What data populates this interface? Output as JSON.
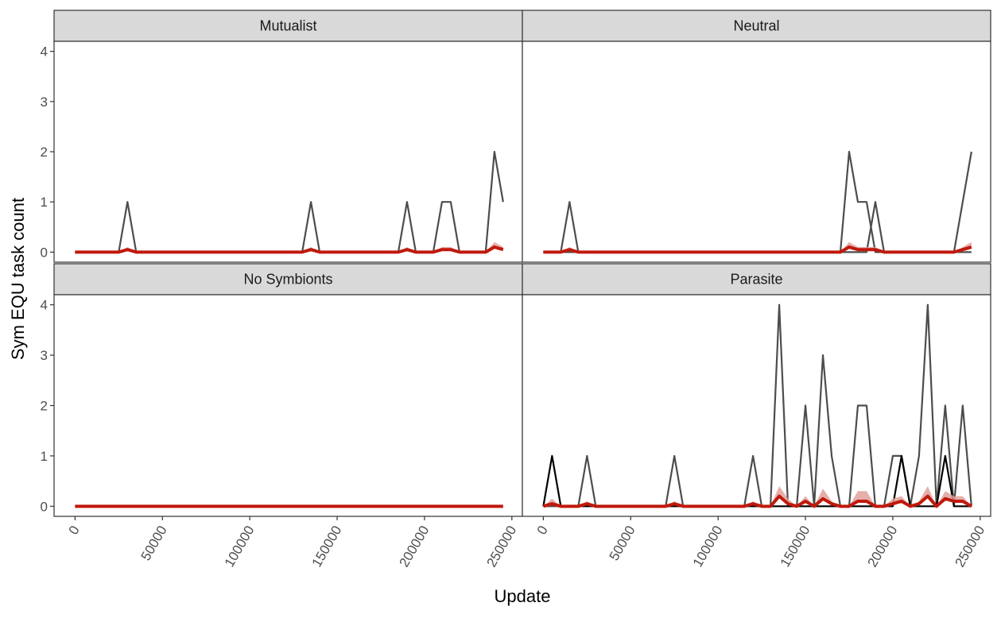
{
  "xlabel": "Update",
  "ylabel": "Sym EQU task count",
  "chart_data": [
    {
      "type": "line",
      "title": "Mutualist",
      "x": [
        0,
        5000,
        10000,
        15000,
        20000,
        25000,
        30000,
        35000,
        40000,
        45000,
        50000,
        55000,
        60000,
        65000,
        70000,
        75000,
        80000,
        85000,
        90000,
        95000,
        100000,
        105000,
        110000,
        115000,
        120000,
        125000,
        130000,
        135000,
        140000,
        145000,
        150000,
        155000,
        160000,
        165000,
        170000,
        175000,
        180000,
        185000,
        190000,
        195000,
        200000,
        205000,
        210000,
        215000,
        220000,
        225000,
        230000,
        235000,
        240000,
        245000
      ],
      "xlim": [
        -12000,
        256000
      ],
      "ylim": [
        -0.2,
        4.2
      ],
      "yticks": [
        0,
        1,
        2,
        3,
        4
      ],
      "series": [
        {
          "color": "#4d4d4d",
          "values": [
            0,
            0,
            0,
            0,
            0,
            0,
            1,
            0,
            0,
            0,
            0,
            0,
            0,
            0,
            0,
            0,
            0,
            0,
            0,
            0,
            0,
            0,
            0,
            0,
            0,
            0,
            0,
            1,
            0,
            0,
            0,
            0,
            0,
            0,
            0,
            0,
            0,
            0,
            1,
            0,
            0,
            0,
            1,
            1,
            0,
            0,
            0,
            0,
            2,
            1
          ]
        },
        {
          "color": "#c0190c",
          "ribbon_color": "#e2a19b",
          "values": [
            0,
            0,
            0,
            0,
            0,
            0,
            0.05,
            0,
            0,
            0,
            0,
            0,
            0,
            0,
            0,
            0,
            0,
            0,
            0,
            0,
            0,
            0,
            0,
            0,
            0,
            0,
            0,
            0.05,
            0,
            0,
            0,
            0,
            0,
            0,
            0,
            0,
            0,
            0,
            0.05,
            0,
            0,
            0,
            0.05,
            0.05,
            0,
            0,
            0,
            0,
            0.1,
            0.05
          ],
          "upper": [
            0,
            0,
            0,
            0,
            0,
            0,
            0.1,
            0,
            0,
            0,
            0,
            0,
            0,
            0,
            0,
            0,
            0,
            0,
            0,
            0,
            0,
            0,
            0,
            0,
            0,
            0,
            0,
            0.1,
            0,
            0,
            0,
            0,
            0,
            0,
            0,
            0,
            0,
            0,
            0.1,
            0,
            0,
            0,
            0.1,
            0.1,
            0,
            0,
            0,
            0,
            0.2,
            0.1
          ]
        }
      ]
    },
    {
      "type": "line",
      "title": "Neutral",
      "x": [
        0,
        5000,
        10000,
        15000,
        20000,
        25000,
        30000,
        35000,
        40000,
        45000,
        50000,
        55000,
        60000,
        65000,
        70000,
        75000,
        80000,
        85000,
        90000,
        95000,
        100000,
        105000,
        110000,
        115000,
        120000,
        125000,
        130000,
        135000,
        140000,
        145000,
        150000,
        155000,
        160000,
        165000,
        170000,
        175000,
        180000,
        185000,
        190000,
        195000,
        200000,
        205000,
        210000,
        215000,
        220000,
        225000,
        230000,
        235000,
        240000,
        245000
      ],
      "xlim": [
        -12000,
        256000
      ],
      "ylim": [
        -0.2,
        4.2
      ],
      "series": [
        {
          "color": "#4d4d4d",
          "values": [
            0,
            0,
            0,
            1,
            0,
            0,
            0,
            0,
            0,
            0,
            0,
            0,
            0,
            0,
            0,
            0,
            0,
            0,
            0,
            0,
            0,
            0,
            0,
            0,
            0,
            0,
            0,
            0,
            0,
            0,
            0,
            0,
            0,
            0,
            0,
            2,
            1,
            1,
            0,
            0,
            0,
            0,
            0,
            0,
            0,
            0,
            0,
            0,
            1,
            2
          ]
        },
        {
          "color": "#4d4d4d",
          "values": [
            0,
            0,
            0,
            0,
            0,
            0,
            0,
            0,
            0,
            0,
            0,
            0,
            0,
            0,
            0,
            0,
            0,
            0,
            0,
            0,
            0,
            0,
            0,
            0,
            0,
            0,
            0,
            0,
            0,
            0,
            0,
            0,
            0,
            0,
            0,
            0,
            0,
            0,
            1,
            0,
            0,
            0,
            0,
            0,
            0,
            0,
            0,
            0,
            0,
            0
          ]
        },
        {
          "color": "#c0190c",
          "ribbon_color": "#e2a19b",
          "values": [
            0,
            0,
            0,
            0.05,
            0,
            0,
            0,
            0,
            0,
            0,
            0,
            0,
            0,
            0,
            0,
            0,
            0,
            0,
            0,
            0,
            0,
            0,
            0,
            0,
            0,
            0,
            0,
            0,
            0,
            0,
            0,
            0,
            0,
            0,
            0,
            0.1,
            0.05,
            0.05,
            0.05,
            0,
            0,
            0,
            0,
            0,
            0,
            0,
            0,
            0,
            0.05,
            0.1
          ],
          "upper": [
            0,
            0,
            0,
            0.1,
            0,
            0,
            0,
            0,
            0,
            0,
            0,
            0,
            0,
            0,
            0,
            0,
            0,
            0,
            0,
            0,
            0,
            0,
            0,
            0,
            0,
            0,
            0,
            0,
            0,
            0,
            0,
            0,
            0,
            0,
            0,
            0.2,
            0.1,
            0.1,
            0.1,
            0,
            0,
            0,
            0,
            0,
            0,
            0,
            0,
            0,
            0.1,
            0.2
          ]
        }
      ]
    },
    {
      "type": "line",
      "title": "No Symbionts",
      "x": [
        0,
        5000,
        10000,
        15000,
        20000,
        25000,
        30000,
        35000,
        40000,
        45000,
        50000,
        55000,
        60000,
        65000,
        70000,
        75000,
        80000,
        85000,
        90000,
        95000,
        100000,
        105000,
        110000,
        115000,
        120000,
        125000,
        130000,
        135000,
        140000,
        145000,
        150000,
        155000,
        160000,
        165000,
        170000,
        175000,
        180000,
        185000,
        190000,
        195000,
        200000,
        205000,
        210000,
        215000,
        220000,
        225000,
        230000,
        235000,
        240000,
        245000
      ],
      "xlim": [
        -12000,
        256000
      ],
      "ylim": [
        -0.2,
        4.2
      ],
      "yticks": [
        0,
        1,
        2,
        3,
        4
      ],
      "xticks": [
        0,
        50000,
        100000,
        150000,
        200000,
        250000
      ],
      "series": [
        {
          "color": "#c0190c",
          "ribbon_color": "#e2a19b",
          "values": [
            0,
            0,
            0,
            0,
            0,
            0,
            0,
            0,
            0,
            0,
            0,
            0,
            0,
            0,
            0,
            0,
            0,
            0,
            0,
            0,
            0,
            0,
            0,
            0,
            0,
            0,
            0,
            0,
            0,
            0,
            0,
            0,
            0,
            0,
            0,
            0,
            0,
            0,
            0,
            0,
            0,
            0,
            0,
            0,
            0,
            0,
            0,
            0,
            0,
            0
          ],
          "upper": [
            0,
            0,
            0,
            0,
            0,
            0,
            0,
            0,
            0,
            0,
            0,
            0,
            0,
            0,
            0,
            0,
            0,
            0,
            0,
            0,
            0,
            0,
            0,
            0,
            0,
            0,
            0,
            0,
            0,
            0,
            0,
            0,
            0,
            0,
            0,
            0,
            0,
            0,
            0,
            0,
            0,
            0,
            0,
            0,
            0,
            0,
            0,
            0,
            0,
            0
          ]
        }
      ]
    },
    {
      "type": "line",
      "title": "Parasite",
      "x": [
        0,
        5000,
        10000,
        15000,
        20000,
        25000,
        30000,
        35000,
        40000,
        45000,
        50000,
        55000,
        60000,
        65000,
        70000,
        75000,
        80000,
        85000,
        90000,
        95000,
        100000,
        105000,
        110000,
        115000,
        120000,
        125000,
        130000,
        135000,
        140000,
        145000,
        150000,
        155000,
        160000,
        165000,
        170000,
        175000,
        180000,
        185000,
        190000,
        195000,
        200000,
        205000,
        210000,
        215000,
        220000,
        225000,
        230000,
        235000,
        240000,
        245000
      ],
      "xlim": [
        -12000,
        256000
      ],
      "ylim": [
        -0.2,
        4.2
      ],
      "xticks": [
        0,
        50000,
        100000,
        150000,
        200000,
        250000
      ],
      "series": [
        {
          "color": "#4d4d4d",
          "values": [
            0,
            0,
            0,
            0,
            0,
            1,
            0,
            0,
            0,
            0,
            0,
            0,
            0,
            0,
            0,
            1,
            0,
            0,
            0,
            0,
            0,
            0,
            0,
            0,
            1,
            0,
            0,
            4,
            0,
            0,
            2,
            0,
            3,
            1,
            0,
            0,
            2,
            2,
            0,
            0,
            1,
            1,
            0,
            1,
            4,
            0,
            2,
            0,
            2,
            0
          ]
        },
        {
          "color": "#000000",
          "values": [
            0,
            1,
            0,
            0,
            0,
            0,
            0,
            0,
            0,
            0,
            0,
            0,
            0,
            0,
            0,
            0,
            0,
            0,
            0,
            0,
            0,
            0,
            0,
            0,
            0,
            0,
            0,
            0,
            0,
            0,
            0,
            0,
            0,
            0,
            0,
            0,
            0,
            0,
            0,
            0,
            0,
            1,
            0,
            0,
            0,
            0,
            1,
            0,
            0,
            0
          ]
        },
        {
          "color": "#c0190c",
          "ribbon_color": "#e2a19b",
          "values": [
            0,
            0.05,
            0,
            0,
            0,
            0.05,
            0,
            0,
            0,
            0,
            0,
            0,
            0,
            0,
            0,
            0.05,
            0,
            0,
            0,
            0,
            0,
            0,
            0,
            0,
            0.05,
            0,
            0,
            0.2,
            0.05,
            0,
            0.1,
            0,
            0.15,
            0.05,
            0,
            0,
            0.1,
            0.1,
            0,
            0,
            0.05,
            0.1,
            0,
            0.05,
            0.2,
            0,
            0.15,
            0.1,
            0.1,
            0
          ],
          "upper": [
            0,
            0.15,
            0,
            0,
            0,
            0.1,
            0,
            0,
            0,
            0,
            0,
            0,
            0,
            0,
            0,
            0.1,
            0,
            0,
            0,
            0,
            0,
            0,
            0,
            0,
            0.1,
            0,
            0,
            0.4,
            0.15,
            0,
            0.2,
            0,
            0.35,
            0.1,
            0,
            0,
            0.3,
            0.3,
            0,
            0,
            0.15,
            0.2,
            0,
            0.1,
            0.4,
            0,
            0.3,
            0.2,
            0.2,
            0
          ]
        }
      ]
    }
  ]
}
